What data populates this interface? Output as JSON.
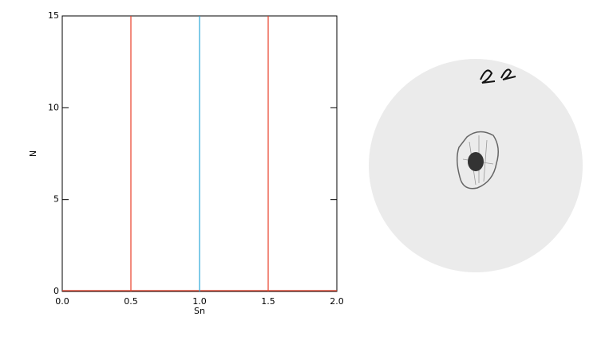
{
  "chart_data": {
    "type": "line",
    "xlabel": "Sn",
    "ylabel": "N",
    "x": [
      0,
      2
    ],
    "series": [
      {
        "color": "#e8402a",
        "values": [
          0,
          0
        ]
      }
    ],
    "vlines": [
      {
        "x": 0.5,
        "color": "#e8402a"
      },
      {
        "x": 1.0,
        "color": "#2aa8d8"
      },
      {
        "x": 1.5,
        "color": "#e8402a"
      }
    ],
    "xlim": [
      0,
      2
    ],
    "ylim": [
      0,
      15
    ],
    "xticks": [
      {
        "value": 0,
        "label": "0.0"
      },
      {
        "value": 0.5,
        "label": "0.5"
      },
      {
        "value": 1,
        "label": "1.0"
      },
      {
        "value": 1.5,
        "label": "1.5"
      },
      {
        "value": 2,
        "label": "2.0"
      }
    ],
    "yticks": [
      0,
      5,
      10,
      15
    ]
  }
}
